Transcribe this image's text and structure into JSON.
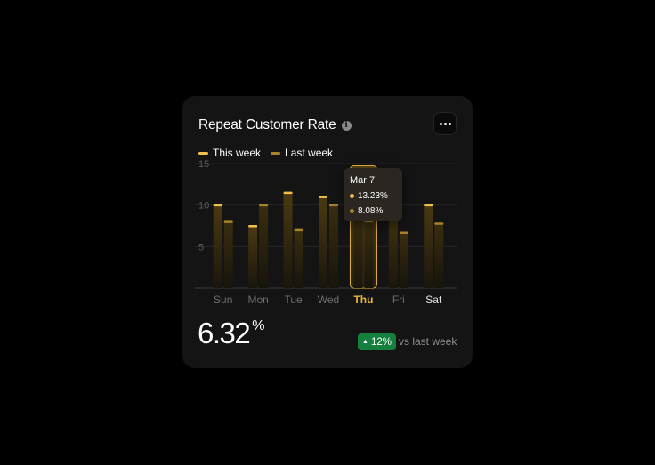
{
  "card": {
    "title": "Repeat Customer Rate",
    "info_icon": "info-icon",
    "more_icon": "more-horizontal-icon"
  },
  "legend": {
    "this_week": "This week",
    "last_week": "Last week"
  },
  "tooltip": {
    "date": "Mar 7",
    "this_week_value": "13.23%",
    "last_week_value": "8.08%"
  },
  "summary": {
    "value": "6.32",
    "unit": "%",
    "change": "12%",
    "change_direction": "up",
    "comparison": "vs last week"
  },
  "colors": {
    "this_week": "#f2c04a",
    "last_week": "#a8832a",
    "highlight": "#e8b43c",
    "positive": "#15803d",
    "card_bg": "#141414"
  },
  "chart_data": {
    "type": "bar",
    "categories": [
      "Sun",
      "Mon",
      "Tue",
      "Wed",
      "Thu",
      "Fri",
      "Sat"
    ],
    "series": [
      {
        "name": "This week",
        "values": [
          10,
          7.5,
          11.5,
          11,
          13.23,
          10.7,
          10
        ]
      },
      {
        "name": "Last week",
        "values": [
          8,
          10,
          7,
          10,
          8.08,
          6.7,
          7.8
        ]
      }
    ],
    "yticks": [
      5,
      10,
      15
    ],
    "ylim": [
      0,
      15
    ],
    "highlighted_category": "Thu",
    "bold_category": "Sat",
    "grid": true
  }
}
